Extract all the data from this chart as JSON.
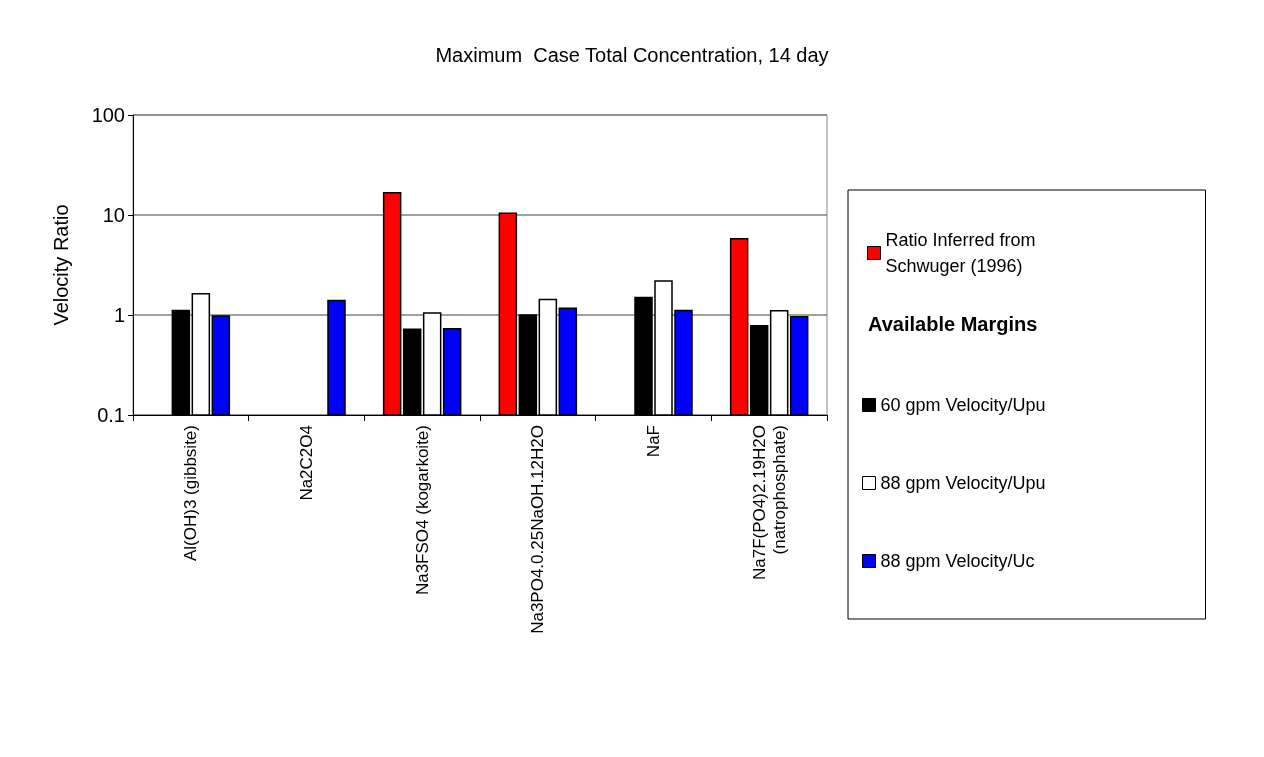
{
  "chart_data": {
    "type": "bar",
    "title": "Maximum  Case Total Concentration, 14 day",
    "ylabel": "Velocity Ratio",
    "legend_title": "Available Margins",
    "categories": [
      "Al(OH)3 (gibbsite)",
      "Na2C2O4",
      "Na3FSO4 (kogarkoite)",
      "Na3PO4.0.25NaOH.12H2O",
      "NaF",
      "Na7F(PO4)2.19H2O (natrophosphate)"
    ],
    "series": [
      {
        "name": "Ratio Inferred from Schwuger (1996)",
        "color": "#ff0000",
        "values": [
          null,
          null,
          16.7,
          10.4,
          null,
          5.8
        ]
      },
      {
        "name": "60 gpm Velocity/Upu",
        "color": "#000000",
        "values": [
          1.11,
          null,
          0.72,
          1.0,
          1.5,
          0.78
        ]
      },
      {
        "name": "88 gpm Velocity/Upu",
        "color": "#ffffff",
        "values": [
          1.63,
          null,
          1.05,
          1.43,
          2.19,
          1.1
        ]
      },
      {
        "name": "88 gpm Velocity/Uc",
        "color": "#0000ff",
        "values": [
          0.98,
          1.4,
          0.73,
          1.17,
          1.11,
          0.96
        ]
      }
    ],
    "log": true,
    "ylim": [
      0.1,
      100
    ],
    "yticks": [
      0.1,
      1,
      10,
      100
    ],
    "grid": "y",
    "legend": "right"
  }
}
